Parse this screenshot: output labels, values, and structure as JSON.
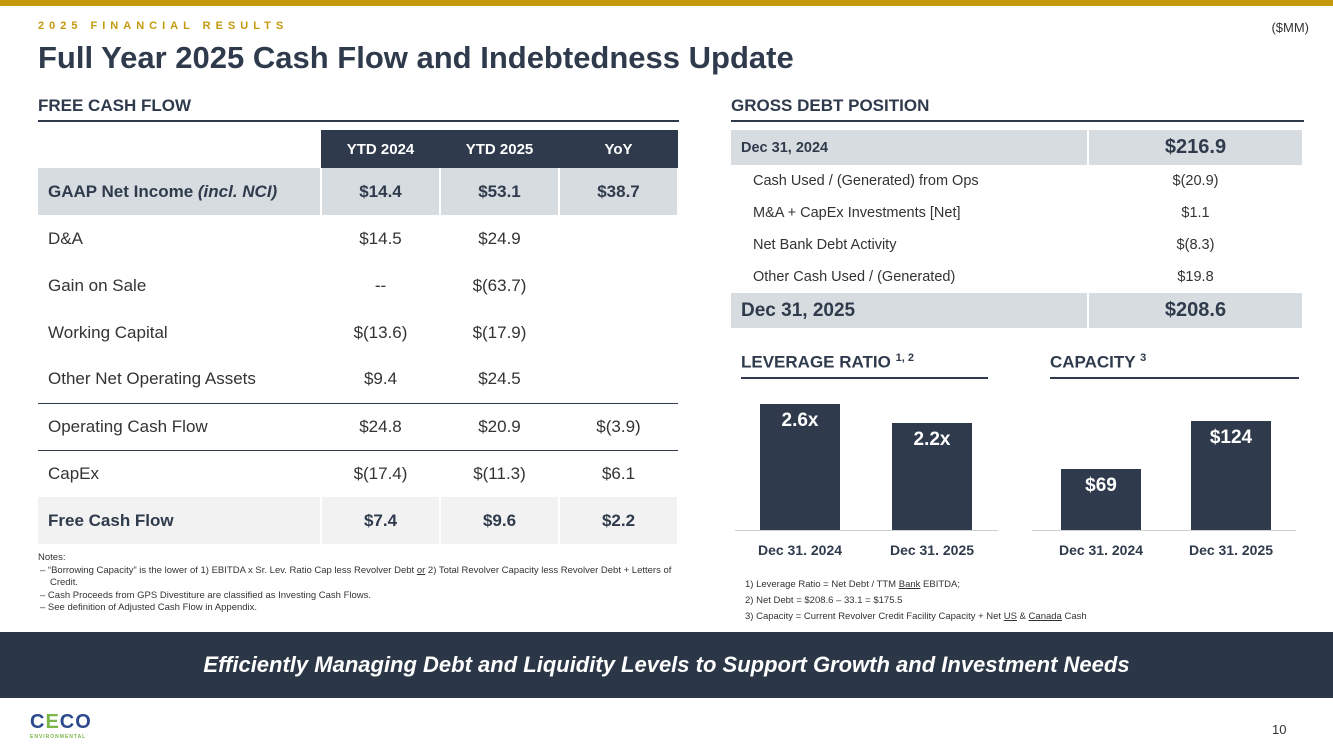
{
  "header": {
    "kicker": "2025 FINANCIAL RESULTS",
    "units": "($MM)",
    "title": "Full Year 2025 Cash Flow and Indebtedness Update"
  },
  "fcf": {
    "section": "FREE CASH FLOW",
    "columns": [
      "",
      "YTD 2024",
      "YTD 2025",
      "YoY"
    ],
    "rows": [
      {
        "label": "GAAP Net Income ",
        "label_em": "(incl. NCI)",
        "v": [
          "$14.4",
          "$53.1",
          "$38.7"
        ]
      },
      {
        "label": "D&A",
        "v": [
          "$14.5",
          "$24.9",
          ""
        ]
      },
      {
        "label": "Gain on Sale",
        "v": [
          "--",
          "$(63.7)",
          ""
        ]
      },
      {
        "label": "Working Capital",
        "v": [
          "$(13.6)",
          "$(17.9)",
          ""
        ]
      },
      {
        "label": "Other Net Operating Assets",
        "v": [
          "$9.4",
          "$24.5",
          ""
        ]
      },
      {
        "label": "Operating Cash Flow",
        "v": [
          "$24.8",
          "$20.9",
          "$(3.9)"
        ]
      },
      {
        "label": "CapEx",
        "v": [
          "$(17.4)",
          "$(11.3)",
          "$6.1"
        ]
      },
      {
        "label": "Free Cash Flow",
        "v": [
          "$7.4",
          "$9.6",
          "$2.2"
        ]
      }
    ]
  },
  "notes": {
    "title": "Notes:",
    "n1a": "–  “Borrowing Capacity” is the lower of 1) EBITDA x Sr. Lev. Ratio Cap less Revolver Debt ",
    "n1or": "or",
    "n1b": " 2) Total Revolver Capacity less Revolver Debt + Letters of Credit.",
    "n2": "–  Cash Proceeds from GPS Divestiture are classified as Investing Cash Flows.",
    "n3": "–  See definition of Adjusted Cash Flow in Appendix."
  },
  "debt": {
    "section": "GROSS DEBT POSITION",
    "rows": [
      {
        "label": "Dec 31, 2024",
        "value": "$216.9"
      },
      {
        "label": "Cash Used / (Generated) from Ops",
        "value": "$(20.9)"
      },
      {
        "label": "M&A + CapEx Investments [Net]",
        "value": "$1.1"
      },
      {
        "label": "Net Bank Debt Activity",
        "value": "$(8.3)"
      },
      {
        "label": "Other Cash Used / (Generated)",
        "value": "$19.8"
      },
      {
        "label": "Dec 31, 2025",
        "value": "$208.6"
      }
    ]
  },
  "leverage": {
    "title": "LEVERAGE RATIO",
    "sup": "1, 2",
    "categories": [
      "Dec 31. 2024",
      "Dec 31. 2025"
    ],
    "values": [
      2.6,
      2.2
    ],
    "labels": [
      "2.6x",
      "2.2x"
    ]
  },
  "capacity": {
    "title": "CAPACITY",
    "sup": "3",
    "categories": [
      "Dec 31. 2024",
      "Dec 31. 2025"
    ],
    "values": [
      69,
      124
    ],
    "labels": [
      "$69",
      "$124"
    ]
  },
  "footnotes": {
    "f1a": "1)    Leverage Ratio = Net Debt / TTM ",
    "f1u": "Bank",
    "f1b": " EBITDA;",
    "f2": "2)    Net Debt = $208.6 – 33.1 = $175.5",
    "f3a": "3)    Capacity = Current Revolver Credit Facility Capacity + Net ",
    "f3u1": "US",
    "f3m": " & ",
    "f3u2": "Canada",
    "f3b": " Cash"
  },
  "banner": "Efficiently Managing Debt and Liquidity Levels to Support Growth and Investment Needs",
  "logo": {
    "main1": "C",
    "main2": "E",
    "main3": "CO",
    "sub": "ENVIRONMENTAL"
  },
  "page": "10",
  "colors": {
    "navy": "#2f3b4c",
    "gold": "#c49a0c",
    "gray": "#d6dcdf"
  }
}
